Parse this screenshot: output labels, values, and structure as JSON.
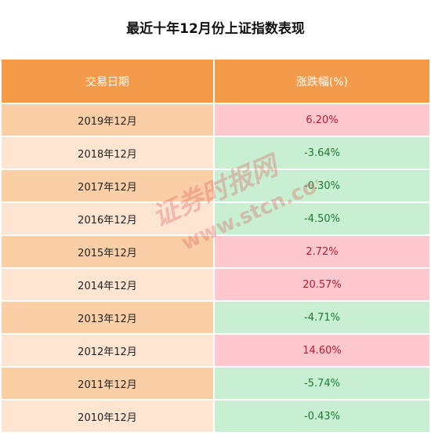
{
  "title": "最近十年12月份上证指数表现",
  "table": {
    "headers": {
      "date": "交易日期",
      "change": "涨跌幅(%)"
    },
    "rows": [
      {
        "date": "2019年12月",
        "change": "6.20%",
        "direction": "up"
      },
      {
        "date": "2018年12月",
        "change": "-3.64%",
        "direction": "down"
      },
      {
        "date": "2017年12月",
        "change": "-0.30%",
        "direction": "down"
      },
      {
        "date": "2016年12月",
        "change": "-4.50%",
        "direction": "down"
      },
      {
        "date": "2015年12月",
        "change": "2.72%",
        "direction": "up"
      },
      {
        "date": "2014年12月",
        "change": "20.57%",
        "direction": "up"
      },
      {
        "date": "2013年12月",
        "change": "-4.71%",
        "direction": "down"
      },
      {
        "date": "2012年12月",
        "change": "14.60%",
        "direction": "up"
      },
      {
        "date": "2011年12月",
        "change": "-5.74%",
        "direction": "down"
      },
      {
        "date": "2010年12月",
        "change": "-0.43%",
        "direction": "down"
      }
    ]
  },
  "watermark": {
    "line1": "证券时报网",
    "line2": "www.stcn.com"
  },
  "colors": {
    "header_bg": "#f39b4a",
    "date_odd": "#fbcfa6",
    "date_even": "#fde5d2",
    "up_bg": "#ffc8cf",
    "up_text": "#c0182a",
    "down_bg": "#c8efd1",
    "down_text": "#1e7a35",
    "watermark": "#e06060"
  }
}
